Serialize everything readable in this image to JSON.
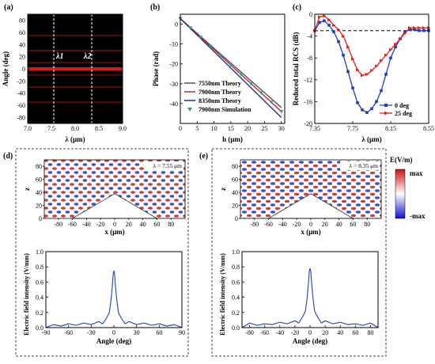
{
  "chart_data": [
    {
      "id": "a",
      "panel_label": "(a)",
      "type": "heatmap",
      "xlabel": "λ (μm)",
      "ylabel": "Angle (deg)",
      "xlim": [
        7.0,
        9.0
      ],
      "ylim": [
        -90,
        90
      ],
      "xticks": [
        "7.0",
        "7.5",
        "8.0",
        "8.5",
        "9.0"
      ],
      "yticks": [
        "80",
        "60",
        "40",
        "20",
        "0",
        "-20",
        "-40",
        "-60",
        "-80"
      ],
      "markers": [
        {
          "label": "λ1",
          "x": 7.55
        },
        {
          "label": "λ2",
          "x": 8.35
        }
      ],
      "background": "#000000",
      "bands": [
        0,
        10,
        -10,
        30,
        -30,
        55,
        -55
      ]
    },
    {
      "id": "b",
      "panel_label": "(b)",
      "type": "line",
      "xlabel": "h (μm)",
      "ylabel": "Phase (rad)",
      "xlim": [
        0,
        31
      ],
      "ylim": [
        -50,
        5
      ],
      "xticks": [
        "0",
        "5",
        "10",
        "15",
        "20",
        "25",
        "30"
      ],
      "yticks": [
        "0",
        "-10",
        "-20",
        "-30",
        "-40"
      ],
      "series": [
        {
          "name": "7550nm Theory",
          "color": "#555555",
          "x": [
            0,
            30
          ],
          "y": [
            2.8,
            -42
          ]
        },
        {
          "name": "7900nm Theory",
          "color": "#cc2222",
          "x": [
            0,
            30
          ],
          "y": [
            2.8,
            -44
          ]
        },
        {
          "name": "8350nm Theory",
          "color": "#1f2f99",
          "x": [
            0,
            30
          ],
          "y": [
            2.8,
            -47
          ]
        },
        {
          "name": "7900nm Simulation",
          "color": "#2a9d8f",
          "marker": "triangle-down",
          "x": [
            0,
            3,
            6,
            9,
            12,
            15,
            18,
            21,
            24,
            27,
            30
          ],
          "y": [
            2.8,
            -1.9,
            -6.6,
            -11.2,
            -15.9,
            -20.6,
            -25.3,
            -30,
            -34.6,
            -39.3,
            -44
          ]
        }
      ],
      "legend": "bottom-left"
    },
    {
      "id": "c",
      "panel_label": "(c)",
      "type": "line",
      "xlabel": "λ (μm)",
      "ylabel": "Reduced total RCS (dB)",
      "xlim": [
        7.35,
        8.55
      ],
      "ylim": [
        -20,
        0
      ],
      "xticks": [
        "7.35",
        "7.75",
        "8.15",
        "8.55"
      ],
      "yticks": [
        "0",
        "-4",
        "-8",
        "-12",
        "-16",
        "-20"
      ],
      "reference_line": -3,
      "series": [
        {
          "name": "0 deg",
          "color": "#1f3fbf",
          "marker": "square",
          "x": [
            7.35,
            7.4,
            7.45,
            7.5,
            7.55,
            7.6,
            7.65,
            7.7,
            7.75,
            7.8,
            7.85,
            7.9,
            7.95,
            8.0,
            8.05,
            8.1,
            8.15,
            8.2,
            8.25,
            8.3,
            8.35,
            8.4,
            8.45,
            8.5,
            8.55
          ],
          "y": [
            -3,
            -1.5,
            -1.2,
            -2,
            -3.2,
            -5,
            -7.5,
            -10.5,
            -13.5,
            -16.2,
            -17.5,
            -18,
            -17.3,
            -16,
            -14,
            -11,
            -8,
            -6,
            -4.5,
            -3.2,
            -2.8,
            -2.8,
            -3,
            -3,
            -3
          ]
        },
        {
          "name": "25 deg",
          "color": "#dd2222",
          "marker": "triangle-right",
          "x": [
            7.35,
            7.4,
            7.45,
            7.5,
            7.55,
            7.6,
            7.65,
            7.7,
            7.75,
            7.8,
            7.85,
            7.9,
            7.95,
            8.0,
            8.05,
            8.1,
            8.15,
            8.2,
            8.25,
            8.3,
            8.35,
            8.4,
            8.45,
            8.5,
            8.55
          ],
          "y": [
            -3,
            -0.5,
            -0.3,
            -1,
            -2,
            -2.8,
            -4,
            -6,
            -8.2,
            -10.2,
            -11.2,
            -11,
            -10.3,
            -9.5,
            -8.5,
            -7.5,
            -6.5,
            -5.5,
            -4.5,
            -3.5,
            -2.5,
            -2.5,
            -2.5,
            -2.5,
            -2.5
          ]
        }
      ],
      "legend": "bottom-right"
    },
    {
      "id": "d",
      "panel_label": "(d)",
      "type": "line",
      "field_annotation": "λ = 7.55 μm",
      "field_xlabel": "x (μm)",
      "field_ylabel": "z",
      "field_xticks": [
        "-80",
        "-60",
        "-40",
        "-20",
        "0",
        "20",
        "40",
        "60",
        "80"
      ],
      "field_yticks": [
        "80",
        "60",
        "40",
        "20",
        "0"
      ],
      "xlabel": "Angle (deg)",
      "ylabel": "Electric field intensity (V/mm)",
      "xlim": [
        -90,
        90
      ],
      "ylim": [
        0,
        1
      ],
      "xticks": [
        "-90",
        "-60",
        "-30",
        "0",
        "30",
        "60",
        "90"
      ],
      "yticks": [
        "0.0",
        "0.2",
        "0.4",
        "0.6",
        "0.8",
        "1.0"
      ],
      "series": [
        {
          "name": "",
          "color": "#1f3fbf",
          "x": [
            -90,
            -80,
            -70,
            -60,
            -50,
            -40,
            -30,
            -20,
            -15,
            -10,
            -6,
            -4,
            -2,
            -1,
            0,
            1,
            2,
            4,
            6,
            10,
            15,
            20,
            30,
            40,
            50,
            60,
            70,
            80,
            90
          ],
          "y": [
            0.0,
            0.04,
            0.02,
            0.05,
            0.03,
            0.06,
            0.04,
            0.08,
            0.05,
            0.12,
            0.2,
            0.35,
            0.55,
            0.7,
            0.75,
            0.7,
            0.55,
            0.35,
            0.2,
            0.12,
            0.05,
            0.08,
            0.04,
            0.06,
            0.03,
            0.05,
            0.02,
            0.04,
            0.0
          ]
        }
      ]
    },
    {
      "id": "e",
      "panel_label": "(e)",
      "type": "line",
      "field_annotation": "λ = 8.35 μm",
      "field_xlabel": "x (μm)",
      "field_ylabel": "z",
      "field_xticks": [
        "-80",
        "-60",
        "-40",
        "-20",
        "0",
        "20",
        "40",
        "60",
        "80"
      ],
      "field_yticks": [
        "80",
        "60",
        "40",
        "20",
        "0"
      ],
      "xlabel": "Angle (deg)",
      "ylabel": "Electric field intensity (V/mm)",
      "xlim": [
        -90,
        90
      ],
      "ylim": [
        0,
        1
      ],
      "xticks": [
        "-80",
        "-60",
        "-40",
        "-20",
        "0",
        "20",
        "40",
        "60",
        "80"
      ],
      "yticks": [
        "0.0",
        "0.2",
        "0.4",
        "0.6",
        "0.8",
        "1.0"
      ],
      "series": [
        {
          "name": "",
          "color": "#1f3fbf",
          "x": [
            -90,
            -80,
            -70,
            -60,
            -50,
            -40,
            -30,
            -20,
            -15,
            -10,
            -6,
            -4,
            -2,
            -1,
            0,
            1,
            2,
            4,
            6,
            10,
            15,
            20,
            30,
            40,
            50,
            60,
            70,
            80,
            90
          ],
          "y": [
            0.0,
            0.06,
            0.03,
            0.05,
            0.04,
            0.07,
            0.05,
            0.09,
            0.06,
            0.14,
            0.22,
            0.38,
            0.6,
            0.74,
            0.78,
            0.74,
            0.6,
            0.38,
            0.22,
            0.14,
            0.06,
            0.09,
            0.05,
            0.07,
            0.04,
            0.05,
            0.03,
            0.06,
            0.0
          ]
        }
      ]
    }
  ],
  "colorbar": {
    "title": "E(V/m)",
    "max_label": "max",
    "min_label": "-max",
    "colors": [
      "#cc1111",
      "#ffffff",
      "#1111cc"
    ]
  }
}
